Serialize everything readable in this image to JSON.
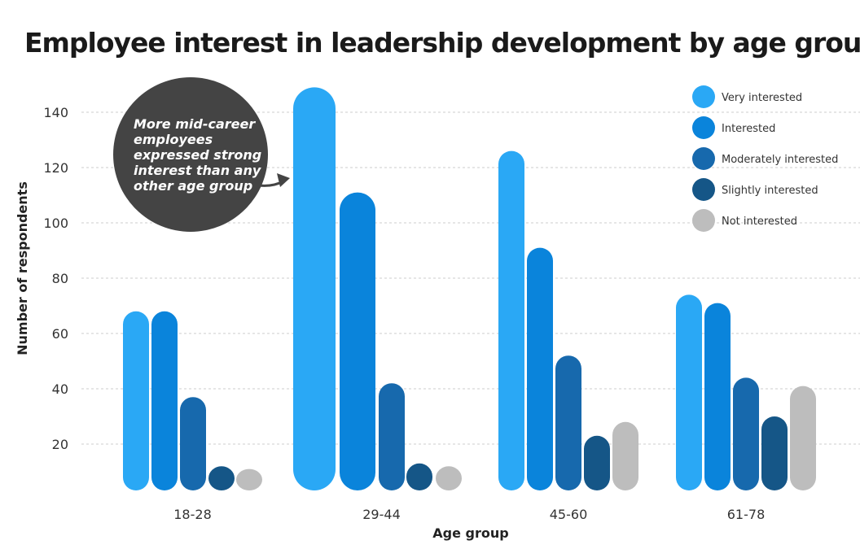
{
  "chart_data": {
    "type": "bar",
    "title": "Employee interest in leadership development by age group",
    "xlabel": "Age group",
    "ylabel": "Number of respondents",
    "ylim": [
      0,
      150
    ],
    "yticks": [
      20,
      40,
      60,
      80,
      100,
      120,
      140
    ],
    "grid": true,
    "legend_position": "top-right",
    "categories": [
      "18-28",
      "29-44",
      "45-60",
      "61-78"
    ],
    "highlight_category": "29-44",
    "series": [
      {
        "name": "Very interested",
        "color": "#2aa8f5",
        "values": [
          68,
          149,
          126,
          74
        ]
      },
      {
        "name": "Interested",
        "color": "#0a84db",
        "values": [
          68,
          111,
          91,
          71
        ]
      },
      {
        "name": "Moderately interested",
        "color": "#1769ad",
        "values": [
          37,
          42,
          52,
          44
        ]
      },
      {
        "name": "Slightly interested",
        "color": "#155687",
        "values": [
          12,
          13,
          23,
          30
        ]
      },
      {
        "name": "Not interested",
        "color": "#bdbdbd",
        "values": [
          11,
          12,
          28,
          41
        ]
      }
    ],
    "annotation": {
      "lines": [
        "More mid-career",
        "employees",
        "expressed strong",
        "interest than any",
        "other age group"
      ],
      "color": "#444444"
    }
  }
}
